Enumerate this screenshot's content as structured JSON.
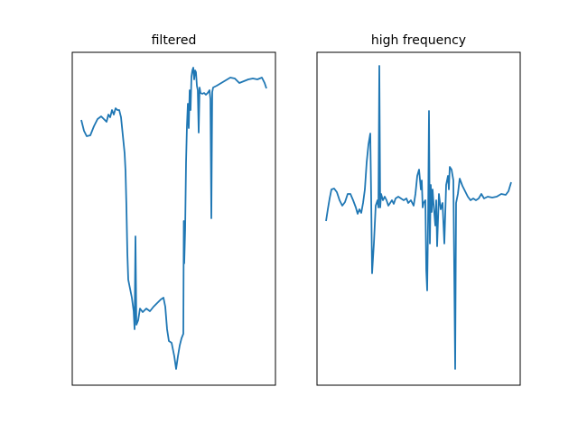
{
  "chart_data": [
    {
      "type": "line",
      "title": "filtered",
      "color": "#1f77b4",
      "xlim": [
        -10,
        215
      ],
      "ylim": [
        -17,
        352
      ],
      "x": [
        0,
        3,
        6,
        10,
        14,
        18,
        22,
        26,
        28,
        30,
        32,
        34,
        36,
        38,
        40,
        42,
        44,
        46,
        48,
        49,
        50,
        51,
        52,
        54,
        56,
        58,
        59,
        60,
        61,
        63,
        65,
        68,
        72,
        76,
        80,
        84,
        88,
        91,
        93,
        95,
        97,
        100,
        103,
        105,
        107,
        109,
        111,
        113,
        113.5,
        114,
        115,
        116,
        117,
        118,
        119,
        120,
        121,
        122,
        123,
        124,
        125,
        126,
        127,
        128,
        129,
        130,
        131,
        132,
        134,
        136,
        138,
        140,
        142,
        143,
        144,
        145,
        146,
        150,
        155,
        160,
        165,
        170,
        175,
        180,
        185,
        190,
        195,
        200,
        203,
        205
      ],
      "values": [
        277,
        265,
        259,
        260,
        270,
        278,
        281,
        277,
        275,
        283,
        280,
        288,
        283,
        290,
        288,
        288,
        280,
        260,
        240,
        220,
        180,
        130,
        100,
        90,
        80,
        65,
        45,
        148,
        50,
        55,
        68,
        64,
        68,
        65,
        70,
        74,
        78,
        80,
        70,
        45,
        32,
        30,
        15,
        1,
        15,
        27,
        35,
        40,
        165,
        118,
        155,
        230,
        270,
        295,
        268,
        310,
        288,
        325,
        332,
        335,
        322,
        332,
        330,
        315,
        310,
        263,
        313,
        307,
        306,
        307,
        305,
        307,
        310,
        300,
        168,
        308,
        313,
        315,
        318,
        321,
        324,
        323,
        318,
        320,
        322,
        323,
        322,
        324,
        318,
        312
      ]
    },
    {
      "type": "line",
      "title": "high frequency",
      "color": "#1f77b4",
      "xlim": [
        -10,
        215
      ],
      "ylim": [
        -17,
        352
      ],
      "x": [
        0,
        2,
        4,
        6,
        9,
        12,
        15,
        18,
        21,
        24,
        27,
        30,
        33,
        35,
        37,
        39,
        41,
        43,
        45,
        47,
        49,
        50,
        51,
        53,
        55,
        57,
        58,
        59,
        60,
        61,
        63,
        65,
        67,
        69,
        71,
        73,
        75,
        77,
        80,
        83,
        86,
        89,
        91,
        94,
        97,
        99,
        101,
        103,
        105,
        106,
        107,
        108,
        110,
        111,
        112,
        113,
        114,
        115,
        116,
        117,
        118,
        119,
        121,
        122,
        123,
        125,
        127,
        129,
        131,
        133,
        135,
        136,
        137,
        139,
        141,
        143,
        144,
        146,
        148,
        151,
        154,
        157,
        160,
        163,
        166,
        169,
        172,
        175,
        179,
        184,
        189,
        194,
        199,
        202,
        205
      ],
      "values": [
        165,
        178,
        190,
        200,
        201,
        197,
        188,
        182,
        186,
        195,
        195,
        188,
        180,
        173,
        178,
        174,
        185,
        200,
        230,
        250,
        262,
        190,
        107,
        140,
        182,
        188,
        180,
        337,
        180,
        195,
        188,
        192,
        188,
        182,
        185,
        188,
        184,
        190,
        192,
        190,
        188,
        190,
        185,
        188,
        182,
        195,
        215,
        222,
        200,
        210,
        180,
        185,
        188,
        110,
        88,
        165,
        287,
        140,
        205,
        175,
        200,
        185,
        160,
        188,
        137,
        195,
        178,
        185,
        140,
        205,
        215,
        200,
        225,
        222,
        210,
        1,
        185,
        195,
        212,
        204,
        198,
        192,
        188,
        190,
        188,
        190,
        195,
        190,
        192,
        191,
        192,
        195,
        194,
        198,
        208
      ]
    }
  ]
}
